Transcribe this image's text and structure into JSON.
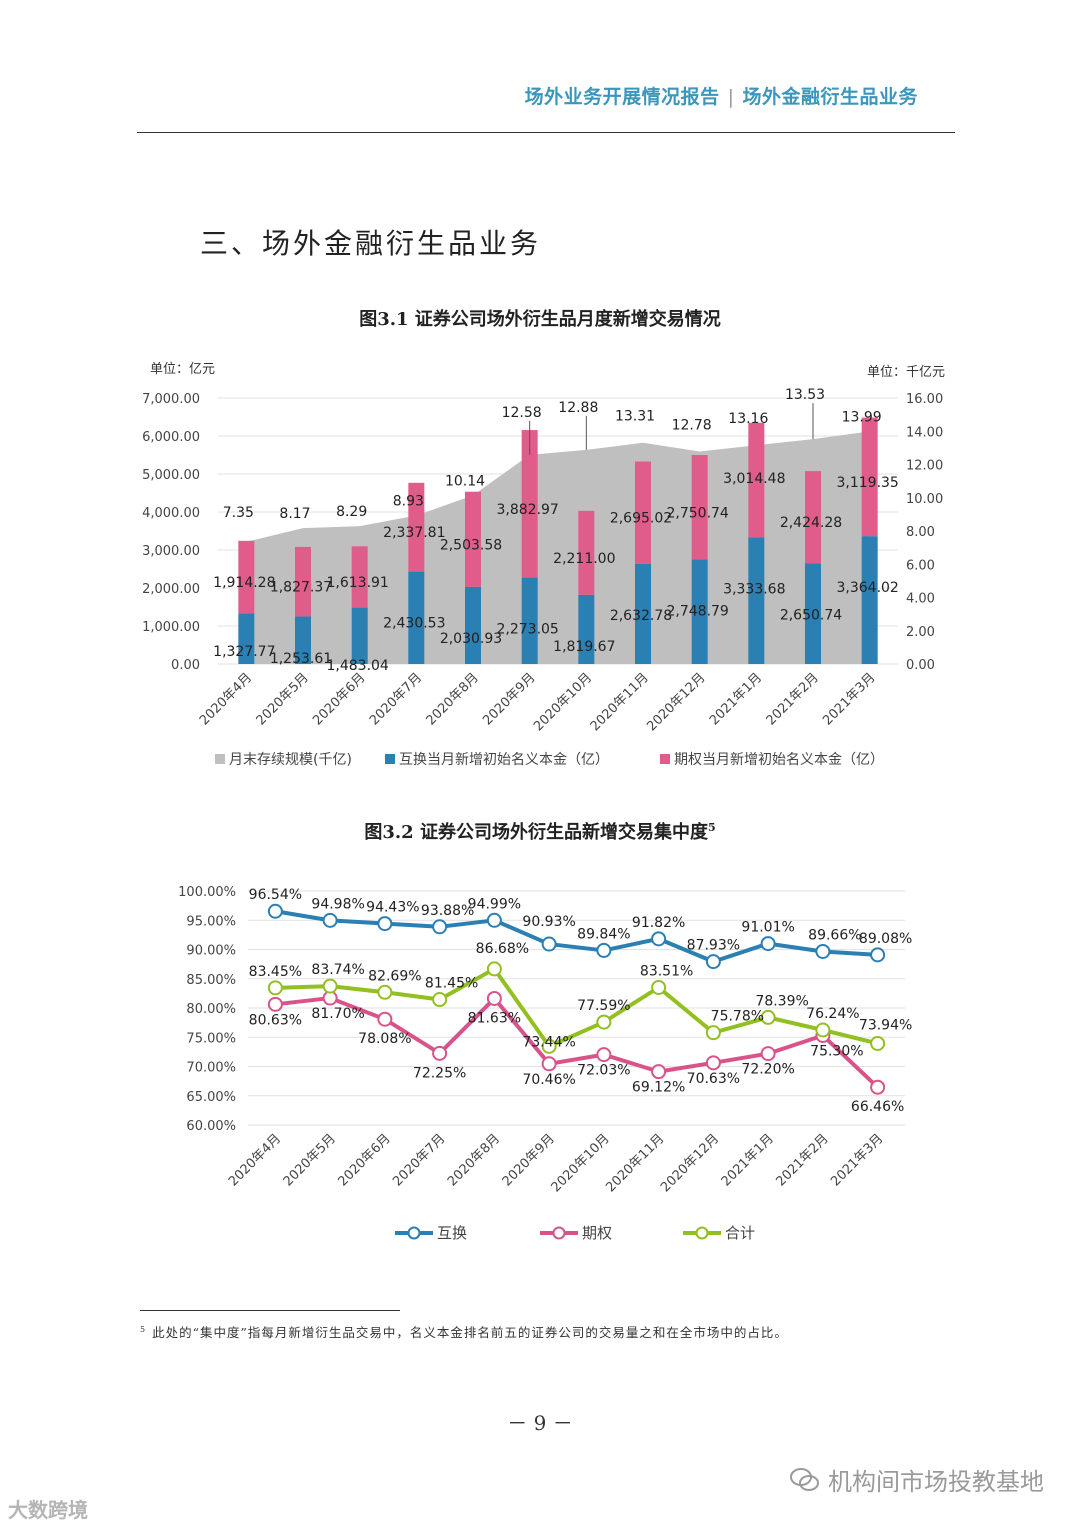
{
  "header": {
    "report": "场外业务开展情况报告",
    "separator": "|",
    "section": "场外金融衍生品业务"
  },
  "section_title": "三、场外金融衍生品业务",
  "figure1": {
    "title": "图3.1 证券公司场外衍生品月度新增交易情况"
  },
  "figure2": {
    "title": "图3.2 证券公司场外衍生品新增交易集中度",
    "footnote_mark": "5"
  },
  "chart_data": [
    {
      "type": "bar",
      "title": "图3.1 证券公司场外衍生品月度新增交易情况",
      "left_unit": "单位：亿元",
      "right_unit": "单位：千亿元",
      "categories": [
        "2020年4月",
        "2020年5月",
        "2020年6月",
        "2020年7月",
        "2020年8月",
        "2020年9月",
        "2020年10月",
        "2020年11月",
        "2020年12月",
        "2021年1月",
        "2021年2月",
        "2021年3月"
      ],
      "left_ticks": [
        "0.00",
        "1,000.00",
        "2,000.00",
        "3,000.00",
        "4,000.00",
        "5,000.00",
        "6,000.00",
        "7,000.00"
      ],
      "right_ticks": [
        "0.00",
        "2.00",
        "4.00",
        "6.00",
        "8.00",
        "10.00",
        "12.00",
        "14.00",
        "16.00"
      ],
      "ylim": [
        0,
        7000
      ],
      "y2lim": [
        0,
        16
      ],
      "series": [
        {
          "name": "月末存续规模(千亿)",
          "kind": "area",
          "axis": "right",
          "color": "#c0bfc0",
          "values": [
            7.35,
            8.17,
            8.29,
            8.93,
            10.14,
            12.58,
            12.88,
            13.31,
            12.78,
            13.16,
            13.53,
            13.99
          ],
          "labels": [
            "7.35",
            "8.17",
            "8.29",
            "8.93",
            "10.14",
            "12.58",
            "12.88",
            "13.31",
            "12.78",
            "13.16",
            "13.53",
            "13.99"
          ]
        },
        {
          "name": "互换当月新增初始名义本金（亿）",
          "kind": "bar",
          "axis": "left",
          "color": "#2a7fb3",
          "values": [
            1327.77,
            1253.61,
            1483.04,
            2430.53,
            2030.93,
            2273.05,
            1819.67,
            2632.78,
            2748.79,
            3333.68,
            2650.74,
            3364.02
          ],
          "labels": [
            "1,327.77",
            "1,253.61",
            "1,483.04",
            "2,430.53",
            "2,030.93",
            "2,273.05",
            "1,819.67",
            "2,632.78",
            "2,748.79",
            "3,333.68",
            "2,650.74",
            "3,364.02"
          ]
        },
        {
          "name": "期权当月新增初始名义本金（亿）",
          "kind": "bar",
          "axis": "left",
          "color": "#e05c8a",
          "values": [
            1914.28,
            1827.37,
            1613.91,
            2337.81,
            2503.58,
            3882.97,
            2211.0,
            2695.02,
            2750.74,
            3014.48,
            2424.28,
            3119.35
          ],
          "labels": [
            "1,914.28",
            "1,827.37",
            "1,613.91",
            "2,337.81",
            "2,503.58",
            "3,882.97",
            "2,211.00",
            "2,695.02",
            "2,750.74",
            "3,014.48",
            "2,424.28",
            "3,119.35"
          ]
        }
      ]
    },
    {
      "type": "line",
      "title": "图3.2 证券公司场外衍生品新增交易集中度",
      "categories": [
        "2020年4月",
        "2020年5月",
        "2020年6月",
        "2020年7月",
        "2020年8月",
        "2020年9月",
        "2020年10月",
        "2020年11月",
        "2020年12月",
        "2021年1月",
        "2021年2月",
        "2021年3月"
      ],
      "y_ticks": [
        "60.00%",
        "65.00%",
        "70.00%",
        "75.00%",
        "80.00%",
        "85.00%",
        "90.00%",
        "95.00%",
        "100.00%"
      ],
      "ylim": [
        60,
        100
      ],
      "series": [
        {
          "name": "互换",
          "color": "#2a7fb3",
          "values": [
            96.54,
            94.98,
            94.43,
            93.88,
            94.99,
            90.93,
            89.84,
            91.82,
            87.93,
            91.01,
            89.66,
            89.08
          ],
          "labels": [
            "96.54%",
            "94.98%",
            "94.43%",
            "93.88%",
            "94.99%",
            "90.93%",
            "89.84%",
            "91.82%",
            "87.93%",
            "91.01%",
            "89.66%",
            "89.08%"
          ]
        },
        {
          "name": "期权",
          "color": "#d9538a",
          "values": [
            80.63,
            81.7,
            78.08,
            72.25,
            81.63,
            70.46,
            72.03,
            69.12,
            70.63,
            72.2,
            75.3,
            66.46
          ],
          "labels": [
            "80.63%",
            "81.70%",
            "78.08%",
            "72.25%",
            "81.63%",
            "70.46%",
            "72.03%",
            "69.12%",
            "70.63%",
            "72.20%",
            "75.30%",
            "66.46%"
          ]
        },
        {
          "name": "合计",
          "color": "#92c020",
          "values": [
            83.45,
            83.74,
            82.69,
            81.45,
            86.68,
            73.44,
            77.59,
            83.51,
            75.78,
            78.39,
            76.24,
            73.94
          ],
          "labels": [
            "83.45%",
            "83.74%",
            "82.69%",
            "81.45%",
            "86.68%",
            "73.44%",
            "77.59%",
            "83.51%",
            "75.78%",
            "78.39%",
            "76.24%",
            "73.94%"
          ]
        }
      ]
    }
  ],
  "footnote": {
    "mark": "5",
    "text": "此处的“集中度”指每月新增衍生品交易中，名义本金排名前五的证券公司的交易量之和在全市场中的占比。"
  },
  "page_number": "－ 9 －",
  "watermark_right": "机构间市场投教基地",
  "watermark_left": "大数跨境"
}
